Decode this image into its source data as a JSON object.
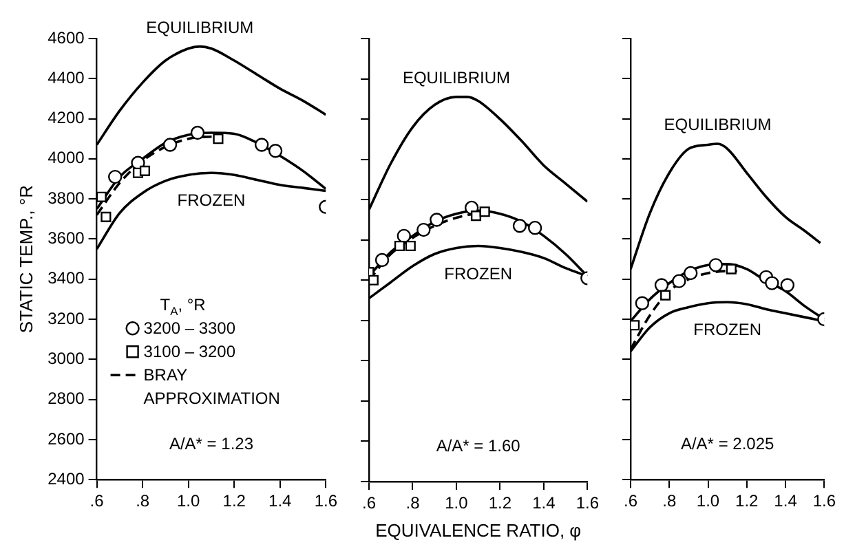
{
  "chart_data": [
    {
      "type": "line",
      "ylabel": "STATIC TEMP., °R",
      "legend": "bottom left",
      "legend_title": "T$_{A}$, °R",
      "xlim": [
        0.6,
        1.6
      ],
      "xticks": [
        {
          "value": 0.6,
          "label": ".6"
        },
        {
          "value": 0.8,
          "label": ".8"
        },
        {
          "value": 1,
          "label": "1.0"
        },
        1.2,
        1.4,
        1.6
      ],
      "ylim": [
        2400,
        4600
      ],
      "yticks": [
        2400,
        2600,
        2800,
        3000,
        3200,
        3400,
        3600,
        3800,
        4000,
        4200,
        4400,
        4600
      ],
      "annotations": [
        "A/A* = 1.23"
      ],
      "series": [
        {
          "name": "EQUILIBRIUM",
          "type": "line",
          "color": "#000000",
          "x": [
            0.6,
            0.7,
            0.8,
            0.9,
            1.0,
            1.05,
            1.1,
            1.2,
            1.3,
            1.4,
            1.5,
            1.6
          ],
          "values": [
            4070,
            4240,
            4380,
            4490,
            4550,
            4560,
            4550,
            4490,
            4420,
            4350,
            4290,
            4220
          ]
        },
        {
          "name": "FROZEN",
          "type": "line",
          "color": "#000000",
          "x": [
            0.6,
            0.7,
            0.8,
            0.9,
            1.0,
            1.1,
            1.2,
            1.3,
            1.4,
            1.5,
            1.6
          ],
          "values": [
            3550,
            3730,
            3830,
            3890,
            3920,
            3930,
            3920,
            3895,
            3870,
            3855,
            3840
          ]
        },
        {
          "type": "line",
          "color": "#000000",
          "x": [
            0.6,
            0.7,
            0.8,
            0.9,
            1.0,
            1.1,
            1.2,
            1.3,
            1.4,
            1.5,
            1.6
          ],
          "values": [
            3750,
            3910,
            4000,
            4080,
            4120,
            4130,
            4125,
            4080,
            4015,
            3940,
            3850
          ]
        },
        {
          "name": "3200 – 3300",
          "type": "scatter",
          "marker": "circle",
          "color": "#000000",
          "x": [
            0.68,
            0.78,
            0.92,
            1.04,
            1.32,
            1.38,
            1.6
          ],
          "values": [
            3910,
            3980,
            4070,
            4130,
            4070,
            4040,
            3760
          ]
        },
        {
          "name": "3100 – 3200",
          "type": "scatter",
          "marker": "square",
          "color": "#000000",
          "x": [
            0.62,
            0.64,
            0.78,
            0.81,
            1.13
          ],
          "values": [
            3810,
            3710,
            3930,
            3940,
            4100
          ]
        },
        {
          "name": "BRAY APPROXIMATION",
          "type": "line",
          "line_style": "dashed",
          "color": "#000000",
          "x": [
            0.6,
            0.7,
            0.8,
            0.9,
            1.0,
            1.1,
            1.15
          ],
          "values": [
            3720,
            3880,
            3990,
            4060,
            4100,
            4110,
            4100
          ]
        }
      ]
    },
    {
      "type": "line",
      "xlabel": "EQUIVALENCE RATIO, φ",
      "tick_labels": "x",
      "xlim": [
        0.6,
        1.6
      ],
      "xticks": [
        {
          "value": 0.6,
          "label": ".6"
        },
        {
          "value": 0.8,
          "label": ".8"
        },
        {
          "value": 1,
          "label": "1.0"
        },
        1.2,
        1.4,
        1.6
      ],
      "ylim": [
        2400,
        4600
      ],
      "yticks": [
        2400,
        2600,
        2800,
        3000,
        3200,
        3400,
        3600,
        3800,
        4000,
        4200,
        4400,
        4600
      ],
      "annotations": [
        "A/A* = 1.60"
      ],
      "series": [
        {
          "name": "EQUILIBRIUM",
          "type": "line",
          "color": "#000000",
          "x": [
            0.6,
            0.7,
            0.8,
            0.9,
            1.0,
            1.05,
            1.1,
            1.2,
            1.3,
            1.4,
            1.5,
            1.6
          ],
          "values": [
            3750,
            3980,
            4160,
            4270,
            4310,
            4310,
            4290,
            4200,
            4090,
            3970,
            3880,
            3790
          ]
        },
        {
          "name": "FROZEN",
          "type": "line",
          "color": "#000000",
          "x": [
            0.6,
            0.7,
            0.8,
            0.9,
            1.0,
            1.1,
            1.2,
            1.3,
            1.4,
            1.5,
            1.6
          ],
          "values": [
            3310,
            3390,
            3470,
            3530,
            3560,
            3570,
            3560,
            3540,
            3510,
            3460,
            3420
          ]
        },
        {
          "type": "line",
          "color": "#000000",
          "x": [
            0.6,
            0.7,
            0.8,
            0.9,
            1.0,
            1.1,
            1.2,
            1.3,
            1.4,
            1.5,
            1.6
          ],
          "values": [
            3420,
            3540,
            3620,
            3690,
            3730,
            3745,
            3730,
            3690,
            3620,
            3530,
            3420
          ]
        },
        {
          "type": "line",
          "line_style": "dashed",
          "color": "#000000",
          "x": [
            0.6,
            0.7,
            0.8,
            0.9,
            1.0,
            1.1,
            1.15
          ],
          "values": [
            3400,
            3530,
            3610,
            3670,
            3710,
            3730,
            3730
          ]
        },
        {
          "type": "scatter",
          "marker": "circle",
          "color": "#000000",
          "x": [
            0.66,
            0.76,
            0.85,
            0.91,
            1.07,
            1.29,
            1.36,
            1.6
          ],
          "values": [
            3500,
            3620,
            3650,
            3700,
            3760,
            3670,
            3660,
            3410
          ]
        },
        {
          "type": "scatter",
          "marker": "square",
          "color": "#000000",
          "x": [
            0.6,
            0.62,
            0.74,
            0.79,
            1.09,
            1.13
          ],
          "values": [
            3440,
            3400,
            3570,
            3570,
            3720,
            3740
          ]
        }
      ]
    },
    {
      "type": "line",
      "tick_labels": "x",
      "xlim": [
        0.6,
        1.6
      ],
      "xticks": [
        {
          "value": 0.6,
          "label": ".6"
        },
        {
          "value": 0.8,
          "label": ".8"
        },
        {
          "value": 1,
          "label": "1.0"
        },
        1.2,
        1.4,
        1.6
      ],
      "ylim": [
        2400,
        4600
      ],
      "yticks": [
        2400,
        2600,
        2800,
        3000,
        3200,
        3400,
        3600,
        3800,
        4000,
        4200,
        4400,
        4600
      ],
      "annotations": [
        "A/A* = 2.025"
      ],
      "series": [
        {
          "name": "EQUILIBRIUM",
          "type": "line",
          "color": "#000000",
          "x": [
            0.6,
            0.7,
            0.8,
            0.9,
            1.0,
            1.05,
            1.1,
            1.2,
            1.3,
            1.4,
            1.5,
            1.58
          ],
          "values": [
            3450,
            3730,
            3930,
            4050,
            4070,
            4075,
            4050,
            3930,
            3810,
            3710,
            3640,
            3580
          ]
        },
        {
          "name": "FROZEN",
          "type": "line",
          "color": "#000000",
          "x": [
            0.6,
            0.7,
            0.8,
            0.9,
            1.0,
            1.1,
            1.2,
            1.3,
            1.4,
            1.5,
            1.6
          ],
          "values": [
            3040,
            3160,
            3230,
            3260,
            3280,
            3285,
            3275,
            3250,
            3230,
            3210,
            3190
          ]
        },
        {
          "type": "line",
          "color": "#000000",
          "x": [
            0.6,
            0.7,
            0.8,
            0.9,
            1.0,
            1.1,
            1.2,
            1.3,
            1.4,
            1.5,
            1.6
          ],
          "values": [
            3190,
            3300,
            3380,
            3440,
            3470,
            3475,
            3450,
            3390,
            3340,
            3265,
            3200
          ]
        },
        {
          "type": "line",
          "line_style": "dashed",
          "color": "#000000",
          "x": [
            0.6,
            0.7,
            0.8,
            0.9,
            1.0,
            1.1,
            1.15
          ],
          "values": [
            3050,
            3220,
            3340,
            3400,
            3430,
            3440,
            3440
          ]
        },
        {
          "type": "scatter",
          "marker": "circle",
          "color": "#000000",
          "x": [
            0.66,
            0.76,
            0.85,
            0.91,
            1.04,
            1.3,
            1.33,
            1.41,
            1.6
          ],
          "values": [
            3280,
            3370,
            3390,
            3430,
            3470,
            3410,
            3380,
            3370,
            3200
          ]
        },
        {
          "type": "scatter",
          "marker": "square",
          "color": "#000000",
          "x": [
            0.62,
            0.78,
            1.12
          ],
          "values": [
            3170,
            3320,
            3450
          ]
        }
      ]
    }
  ]
}
